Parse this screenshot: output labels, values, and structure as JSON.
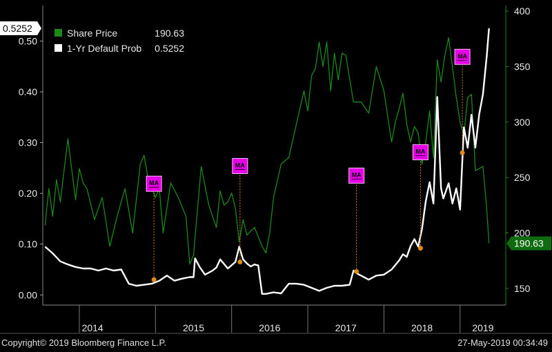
{
  "footer": {
    "copyright": "Copyright© 2019 Bloomberg Finance L.P.",
    "timestamp": "27-May-2019 00:34:49"
  },
  "colors": {
    "background": "#000000",
    "share_price": "#1a8a1a",
    "default_prob": "#ffffff",
    "ma_badge": "#e600e6",
    "event_marker": "#e08a1e",
    "right_tag_bg": "#0f6b0f"
  },
  "chart_data": {
    "type": "line",
    "x_tick_labels": [
      "2014",
      "2015",
      "2016",
      "2017",
      "2018",
      "2019"
    ],
    "legend": [
      {
        "name": "Share Price",
        "value": "190.63"
      },
      {
        "name": "1-Yr Default Prob",
        "value": "0.5252"
      }
    ],
    "left_axis": {
      "ticks": [
        "0.00",
        "0.10",
        "0.20",
        "0.30",
        "0.40",
        "0.50"
      ],
      "min": -0.02,
      "max": 0.57
    },
    "right_axis": {
      "ticks": [
        "150",
        "200",
        "250",
        "300",
        "350",
        "400"
      ],
      "min": 135,
      "max": 405
    },
    "last_value_tags": {
      "left": "0.5252",
      "right": "190.63"
    },
    "series": [
      {
        "name": "Share Price",
        "axis": "right",
        "x": [
          2013.55,
          2013.6,
          2013.65,
          2013.7,
          2013.75,
          2013.85,
          2013.95,
          2014.0,
          2014.05,
          2014.1,
          2014.2,
          2014.3,
          2014.4,
          2014.5,
          2014.6,
          2014.7,
          2014.8,
          2014.85,
          2014.9,
          2015.0,
          2015.05,
          2015.1,
          2015.2,
          2015.3,
          2015.4,
          2015.45,
          2015.5,
          2015.6,
          2015.7,
          2015.8,
          2015.85,
          2015.9,
          2015.95,
          2016.0,
          2016.05,
          2016.1,
          2016.15,
          2016.2,
          2016.3,
          2016.4,
          2016.45,
          2016.5,
          2016.55,
          2016.65,
          2016.75,
          2016.85,
          2016.95,
          2017.0,
          2017.05,
          2017.1,
          2017.15,
          2017.2,
          2017.25,
          2017.3,
          2017.35,
          2017.4,
          2017.45,
          2017.5,
          2017.6,
          2017.7,
          2017.8,
          2017.9,
          2018.0,
          2018.1,
          2018.15,
          2018.2,
          2018.25,
          2018.3,
          2018.35,
          2018.4,
          2018.45,
          2018.5,
          2018.55,
          2018.6,
          2018.65,
          2018.7,
          2018.75,
          2018.8,
          2018.85,
          2018.9,
          2018.95,
          2019.0,
          2019.05,
          2019.1,
          2019.15,
          2019.2,
          2019.25,
          2019.3,
          2019.35,
          2019.38
        ],
        "values": [
          207,
          240,
          215,
          248,
          228,
          285,
          230,
          258,
          245,
          240,
          212,
          232,
          188,
          216,
          240,
          200,
          262,
          270,
          250,
          232,
          240,
          200,
          245,
          232,
          215,
          172,
          180,
          260,
          225,
          205,
          238,
          225,
          228,
          236,
          222,
          192,
          212,
          198,
          205,
          188,
          182,
          200,
          232,
          262,
          268,
          298,
          328,
          310,
          342,
          348,
          372,
          350,
          372,
          328,
          362,
          338,
          362,
          360,
          318,
          318,
          308,
          350,
          328,
          282,
          300,
          312,
          326,
          298,
          282,
          296,
          290,
          262,
          282,
          310,
          268,
          356,
          336,
          360,
          376,
          350,
          322,
          300,
          288,
          322,
          325,
          256,
          258,
          260,
          222,
          190.63
        ]
      },
      {
        "name": "1-Yr Default Prob",
        "axis": "left",
        "x": [
          2013.55,
          2013.65,
          2013.75,
          2013.85,
          2013.95,
          2014.05,
          2014.15,
          2014.25,
          2014.35,
          2014.45,
          2014.55,
          2014.65,
          2014.75,
          2014.85,
          2014.95,
          2015.05,
          2015.15,
          2015.25,
          2015.35,
          2015.45,
          2015.5,
          2015.52,
          2015.58,
          2015.65,
          2015.75,
          2015.8,
          2015.85,
          2015.95,
          2016.05,
          2016.1,
          2016.15,
          2016.2,
          2016.25,
          2016.3,
          2016.35,
          2016.4,
          2016.45,
          2016.55,
          2016.65,
          2016.75,
          2016.85,
          2016.95,
          2017.05,
          2017.15,
          2017.25,
          2017.35,
          2017.45,
          2017.55,
          2017.6,
          2017.65,
          2017.7,
          2017.8,
          2017.9,
          2018.0,
          2018.1,
          2018.2,
          2018.25,
          2018.3,
          2018.35,
          2018.4,
          2018.45,
          2018.5,
          2018.55,
          2018.6,
          2018.65,
          2018.7,
          2018.75,
          2018.78,
          2018.85,
          2018.9,
          2018.95,
          2019.0,
          2019.05,
          2019.1,
          2019.15,
          2019.2,
          2019.25,
          2019.3,
          2019.35,
          2019.38
        ],
        "values": [
          0.095,
          0.082,
          0.066,
          0.06,
          0.055,
          0.052,
          0.052,
          0.048,
          0.052,
          0.048,
          0.05,
          0.022,
          0.018,
          0.02,
          0.022,
          0.028,
          0.038,
          0.028,
          0.032,
          0.035,
          0.035,
          0.072,
          0.055,
          0.04,
          0.048,
          0.054,
          0.07,
          0.052,
          0.065,
          0.095,
          0.07,
          0.062,
          0.056,
          0.06,
          0.058,
          0.002,
          0.002,
          0.005,
          0.003,
          0.022,
          0.022,
          0.02,
          0.014,
          0.008,
          0.014,
          0.018,
          0.018,
          0.02,
          0.048,
          0.042,
          0.038,
          0.03,
          0.038,
          0.04,
          0.05,
          0.068,
          0.08,
          0.075,
          0.096,
          0.11,
          0.095,
          0.13,
          0.185,
          0.222,
          0.18,
          0.39,
          0.21,
          0.19,
          0.22,
          0.18,
          0.21,
          0.168,
          0.33,
          0.29,
          0.355,
          0.29,
          0.355,
          0.395,
          0.47,
          0.5252
        ]
      }
    ],
    "events": [
      {
        "label": "MA",
        "x": 2014.98,
        "y": 0.03
      },
      {
        "label": "MA",
        "x": 2016.11,
        "y": 0.065
      },
      {
        "label": "MA",
        "x": 2017.64,
        "y": 0.046
      },
      {
        "label": "MA",
        "x": 2018.48,
        "y": 0.092
      },
      {
        "label": "MA",
        "x": 2019.03,
        "y": 0.28
      }
    ]
  }
}
